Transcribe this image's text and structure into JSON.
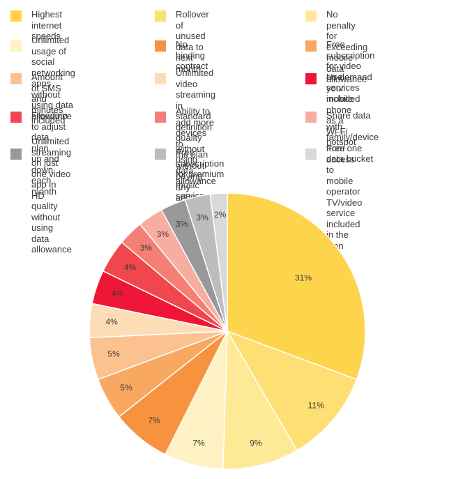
{
  "chart_data": {
    "type": "pie",
    "title": "",
    "slices": [
      {
        "label": "Highest internet speeds",
        "value": 31,
        "value_label": "31%",
        "color": "#FED44C"
      },
      {
        "label": "Rollover of unused\ndata to next month",
        "value": 11,
        "value_label": "11%",
        "color": "#FEDF73"
      },
      {
        "label": "No penalty for exceeding\nmobile data allowance",
        "value": 9,
        "value_label": "9%",
        "color": "#FEE997"
      },
      {
        "label": "Unlimited usage of social\nnetworking apps without\nusing data allowance",
        "value": 7,
        "value_label": "7%",
        "color": "#FEF1C4"
      },
      {
        "label": "No binding contract",
        "value": 7,
        "value_label": "7%",
        "color": "#F7923F"
      },
      {
        "label": "Free subscription for video\non-demand services included",
        "value": 5,
        "value_label": "5%",
        "color": "#F9A862"
      },
      {
        "label": "Amount of SMS and\nminutes included",
        "value": 5,
        "value_label": "5%",
        "color": "#FBC28F"
      },
      {
        "label": "Unlimited video streaming\nin standard definition quality\nwithout using data allowance",
        "value": 4,
        "value_label": "4%",
        "color": "#FDDDB8"
      },
      {
        "label": "Use your mobile phone\nas a Wi-Fi hotspot",
        "value": 4,
        "value_label": "4%",
        "color": "#EE1537"
      },
      {
        "label": "Freedom to adjust data plan\nup and down each month",
        "value": 4,
        "value_label": "4%",
        "color": "#F2464E"
      },
      {
        "label": "Ability to add more devices to\nthe plan without paying any\nadditional charges per device",
        "value": 3,
        "value_label": "3%",
        "color": "#F47F74"
      },
      {
        "label": "Share data with family/device\nfrom one data bucket",
        "value": 3,
        "value_label": "3%",
        "color": "#F7ADA0"
      },
      {
        "label": "Unlimited streaming\non just one video app in\nHD quality without using\ndata allowance",
        "value": 3,
        "value_label": "3%",
        "color": "#99999B"
      },
      {
        "label": "Free subscription for premium\nmusic service included",
        "value": 3,
        "value_label": "3%",
        "color": "#BDBDBF"
      },
      {
        "label": "Free access to mobile\noperator TV/video service\nincluded in the plan",
        "value": 2,
        "value_label": "2%",
        "color": "#D9D9DA"
      }
    ]
  }
}
